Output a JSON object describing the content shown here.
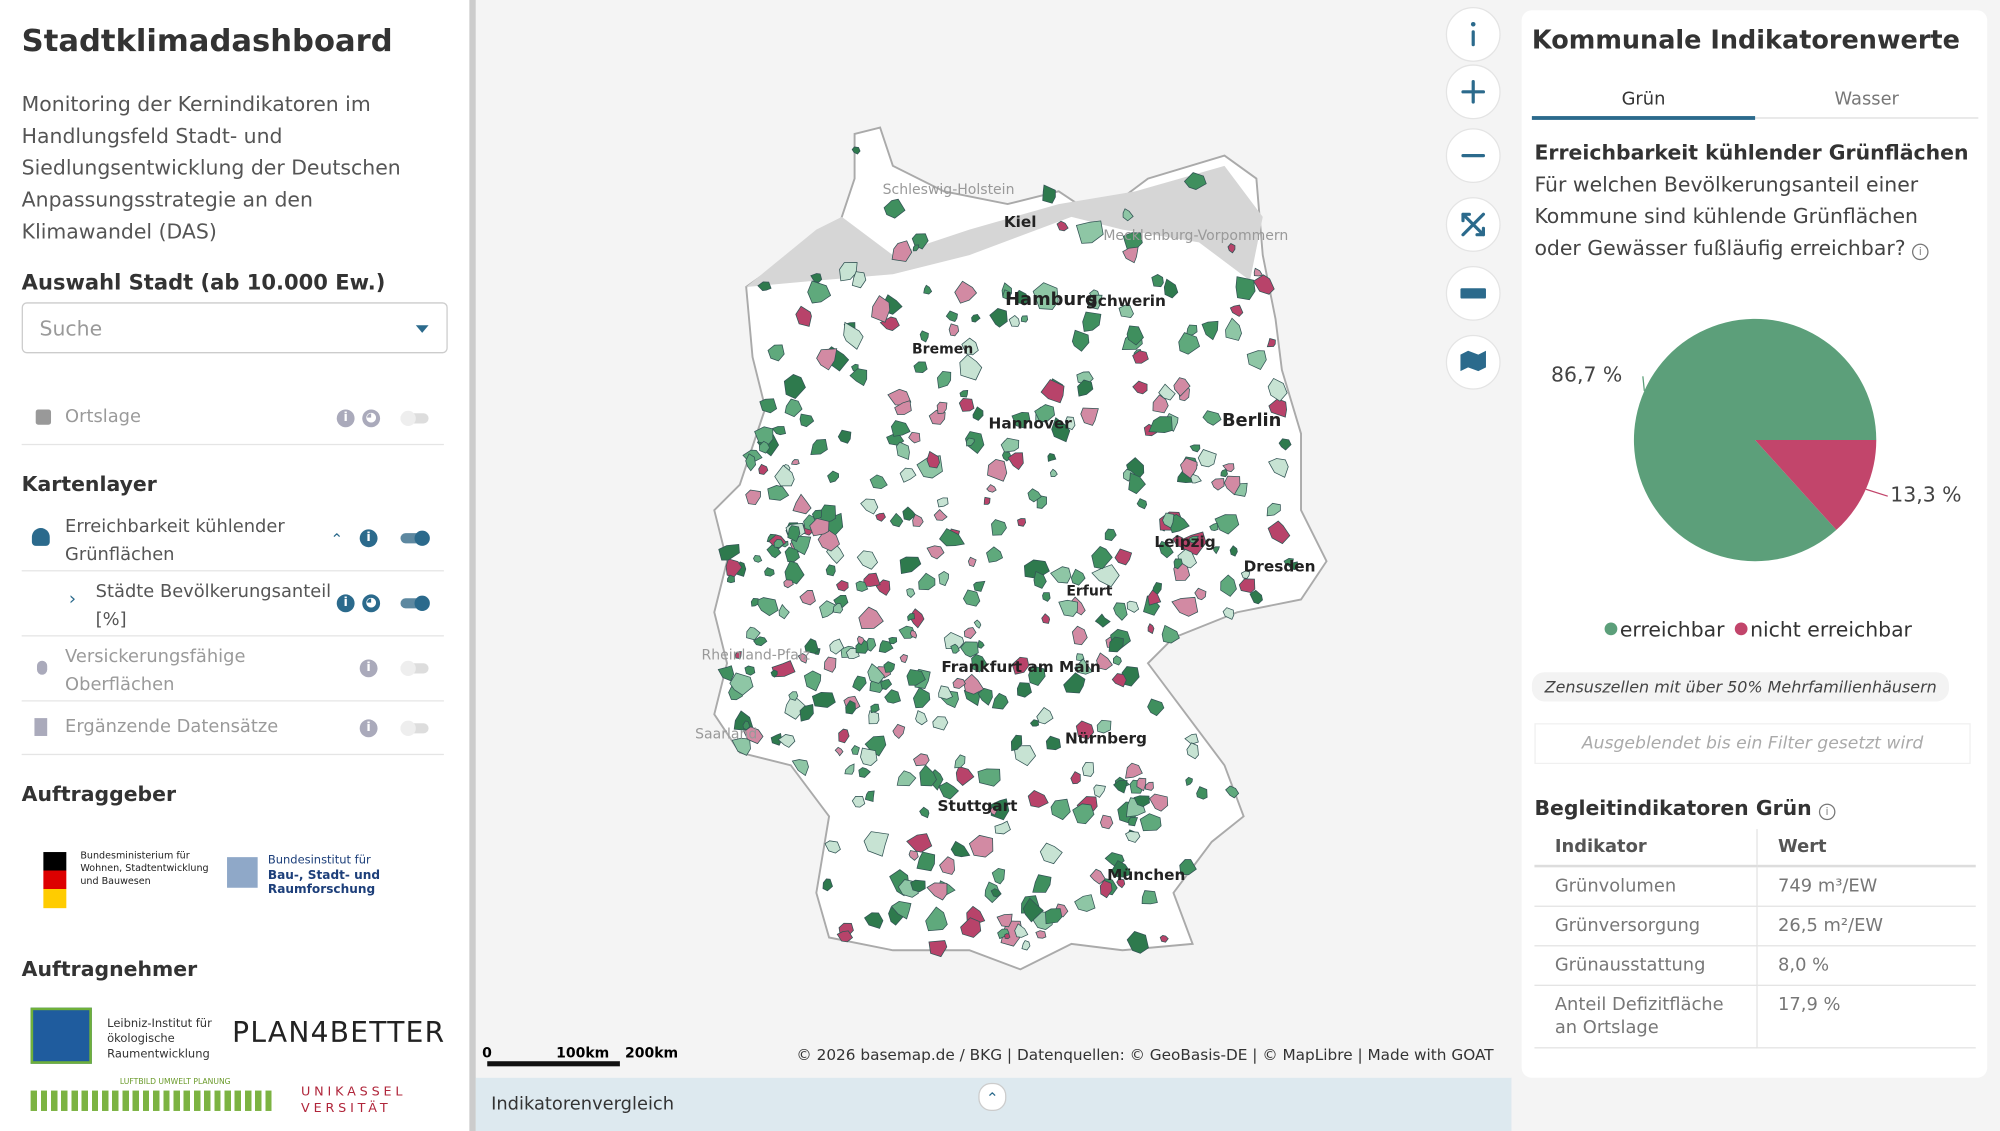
{
  "sidebar": {
    "title": "Stadtklimadashboard",
    "description": "Monitoring der Kernindikatoren im Handlungsfeld Stadt- und Siedlungsentwicklung der Deutschen Anpassungsstrategie an den Klimawandel (DAS)",
    "city_select": {
      "label": "Auswahl Stadt (ab 10.000 Ew.)",
      "placeholder": "Suche"
    },
    "base_layer": "Ortslage",
    "layers_heading": "Kartenlayer",
    "layers": [
      "Erreichbarkeit kühlender Grünflächen",
      "Städte Bevölkerungsanteil [%]",
      "Versickerungsfähige Oberflächen",
      "Ergänzende Datensätze"
    ],
    "client_heading": "Auftraggeber",
    "clients": [
      "Bundesministerium für Wohnen, Stadtentwicklung und Bauwesen",
      "Bundesinstitut für",
      "Bau-, Stadt- und Raumforschung"
    ],
    "contractor_heading": "Auftragnehmer",
    "contractors": [
      "Leibniz-Institut für ökologische Raumentwicklung",
      "PLAN4BETTER",
      "LUFTBILD UMWELT PLANUNG",
      "UNIKASSEL VERSITÄT"
    ]
  },
  "map": {
    "cities": [
      "Kiel",
      "Hamburg",
      "Schwerin",
      "Berlin",
      "Hannover",
      "Leipzig",
      "Dresden",
      "Frankfurt am Main",
      "Nürnberg",
      "München",
      "Stuttgart",
      "Schleswig-Holstein",
      "Mecklenburg-Vorpommern",
      "Rheinland-Pfalz",
      "Saarland",
      "Bremen",
      "Erfurt"
    ],
    "scale": [
      "0",
      "100km",
      "200km"
    ],
    "attribution": "© 2026 basemap.de / BKG | Datenquellen: © GeoBasis-DE | © MapLibre | Made with GOAT",
    "bottom_bar": "Indikatorenvergleich"
  },
  "panel": {
    "title": "Kommunale Indikatorenwerte",
    "tabs": [
      "Grün",
      "Wasser"
    ],
    "indicator_title": "Erreichbarkeit kühlender Grünflächen",
    "question": "Für welchen Bevölkerungsanteil einer Kommune sind kühlende Grünflächen oder Gewässer fußläufig erreichbar?",
    "chip": "Zensuszellen mit über 50% Mehrfamilienhäusern",
    "filter_placeholder": "Ausgeblendet bis ein Filter gesetzt wird",
    "companion_title": "Begleitindikatoren Grün",
    "table": {
      "header": [
        "Indikator",
        "Wert"
      ],
      "rows": [
        [
          "Grünvolumen",
          "749 m³/EW"
        ],
        [
          "Grünversorgung",
          "26,5 m²/EW"
        ],
        [
          "Grünausstattung",
          "8,0 %"
        ],
        [
          "Anteil Defizitfläche an Ortslage",
          "17,9 %"
        ]
      ]
    }
  },
  "chart_data": {
    "type": "pie",
    "categories": [
      "erreichbar",
      "nicht erreichbar"
    ],
    "values": [
      86.7,
      13.3
    ],
    "value_labels": [
      "86,7 %",
      "13,3 %"
    ],
    "colors": [
      "#5c9f7a",
      "#c2456b"
    ]
  }
}
